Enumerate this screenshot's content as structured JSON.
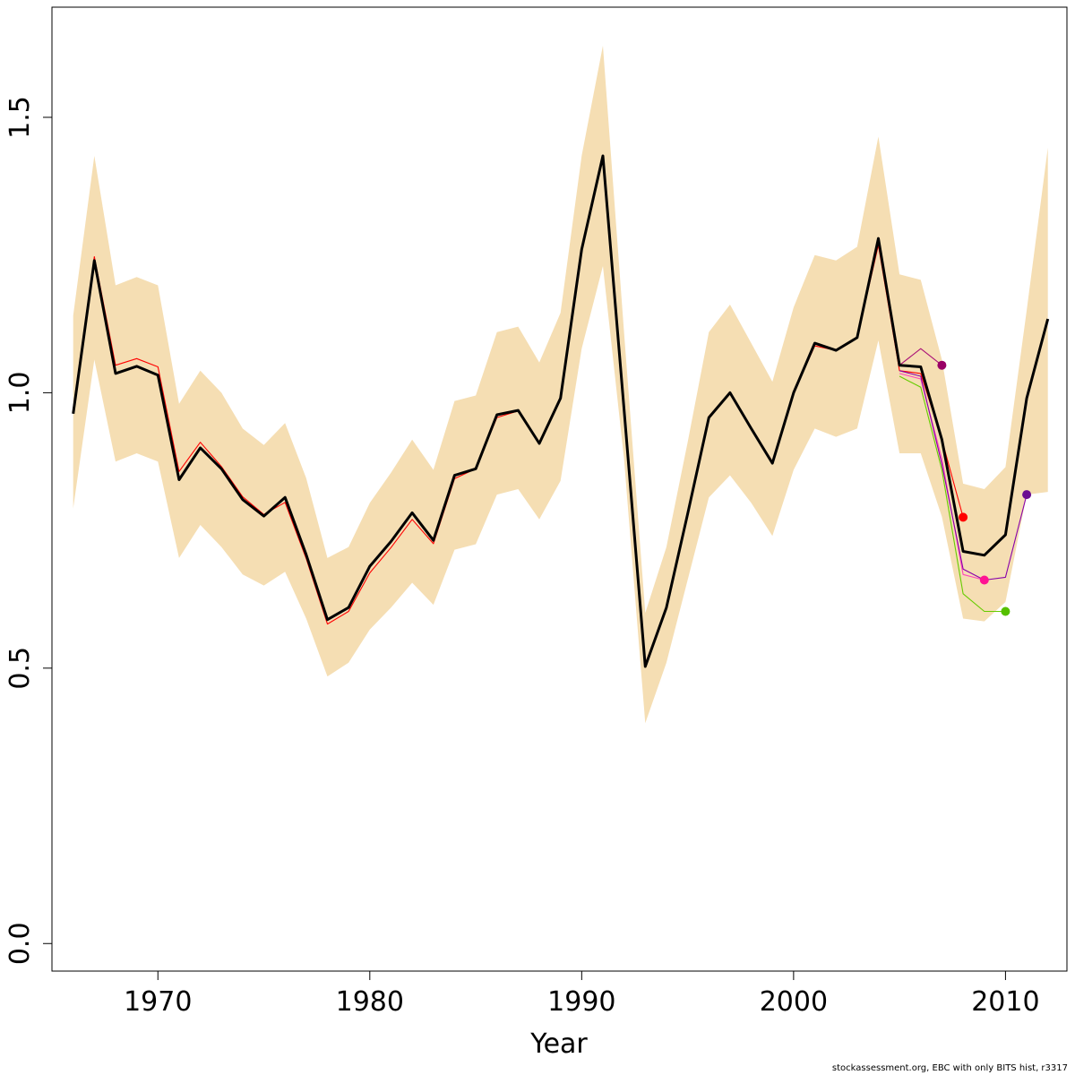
{
  "chart_data": {
    "type": "line",
    "xlabel": "Year",
    "ylabel": "",
    "xlim": [
      1965.0,
      2012.9
    ],
    "ylim": [
      -0.05,
      1.7
    ],
    "x_ticks": [
      1970,
      1980,
      1990,
      2000,
      2010
    ],
    "y_ticks": [
      0.0,
      0.5,
      1.0,
      1.5
    ],
    "x_tick_labels": [
      "1970",
      "1980",
      "1990",
      "2000",
      "2010"
    ],
    "y_tick_labels": [
      "0.0",
      "0.5",
      "1.0",
      "1.5"
    ],
    "band": {
      "color": "#f5deb3",
      "x": [
        1966,
        1967,
        1968,
        1969,
        1970,
        1971,
        1972,
        1973,
        1974,
        1975,
        1976,
        1977,
        1978,
        1979,
        1980,
        1981,
        1982,
        1983,
        1984,
        1985,
        1986,
        1987,
        1988,
        1989,
        1990,
        1991,
        1992,
        1993,
        1994,
        1995,
        1996,
        1997,
        1998,
        1999,
        2000,
        2001,
        2002,
        2003,
        2004,
        2005,
        2006,
        2007,
        2008,
        2009,
        2010,
        2011,
        2012
      ],
      "lower": [
        0.79,
        1.06,
        0.875,
        0.89,
        0.875,
        0.7,
        0.76,
        0.72,
        0.67,
        0.65,
        0.675,
        0.59,
        0.485,
        0.51,
        0.57,
        0.61,
        0.655,
        0.615,
        0.715,
        0.725,
        0.815,
        0.825,
        0.77,
        0.84,
        1.08,
        1.23,
        0.88,
        0.4,
        0.51,
        0.66,
        0.81,
        0.85,
        0.8,
        0.74,
        0.86,
        0.935,
        0.92,
        0.935,
        1.095,
        0.89,
        0.89,
        0.775,
        0.59,
        0.585,
        0.62,
        0.815,
        0.82
      ],
      "upper": [
        1.14,
        1.43,
        1.195,
        1.21,
        1.195,
        0.98,
        1.04,
        1.0,
        0.935,
        0.905,
        0.945,
        0.845,
        0.7,
        0.72,
        0.8,
        0.855,
        0.915,
        0.86,
        0.985,
        0.995,
        1.11,
        1.12,
        1.055,
        1.145,
        1.43,
        1.63,
        1.11,
        0.6,
        0.72,
        0.91,
        1.11,
        1.16,
        1.09,
        1.02,
        1.155,
        1.25,
        1.24,
        1.265,
        1.465,
        1.215,
        1.205,
        1.06,
        0.835,
        0.825,
        0.865,
        1.15,
        1.445
      ]
    },
    "series": [
      {
        "color": "#000000",
        "x": [
          1966,
          1967,
          1968,
          1969,
          1970,
          1971,
          1972,
          1973,
          1974,
          1975,
          1976,
          1977,
          1978,
          1979,
          1980,
          1981,
          1982,
          1983,
          1984,
          1985,
          1986,
          1987,
          1988,
          1989,
          1990,
          1991,
          1992,
          1993,
          1994,
          1995,
          1996,
          1997,
          1998,
          1999,
          2000,
          2001,
          2002,
          2003,
          2004,
          2005,
          2006,
          2007,
          2008,
          2009,
          2010,
          2011,
          2012
        ],
        "values": [
          0.962,
          1.24,
          1.035,
          1.048,
          1.032,
          0.842,
          0.9,
          0.862,
          0.806,
          0.776,
          0.81,
          0.706,
          0.588,
          0.61,
          0.685,
          0.73,
          0.782,
          0.732,
          0.85,
          0.862,
          0.96,
          0.968,
          0.908,
          0.99,
          1.26,
          1.43,
          0.97,
          0.503,
          0.61,
          0.78,
          0.955,
          1.0,
          0.935,
          0.872,
          1.0,
          1.09,
          1.077,
          1.1,
          1.28,
          1.05,
          1.047,
          0.915,
          0.712,
          0.705,
          0.742,
          0.99,
          1.134
        ]
      },
      {
        "color": "#ff0000",
        "x": [
          1966,
          1967,
          1968,
          1969,
          1970,
          1971,
          1972,
          1973,
          1974,
          1975,
          1976,
          1977,
          1978,
          1979,
          1980,
          1981,
          1982,
          1983,
          1984,
          1985,
          1986,
          1987,
          1988,
          1989,
          1990,
          1991,
          1992,
          1993,
          1994,
          1995,
          1996,
          1997,
          1998,
          1999,
          2000,
          2001,
          2002,
          2003,
          2004,
          2005,
          2006,
          2007,
          2008
        ],
        "values": [
          0.97,
          1.247,
          1.05,
          1.062,
          1.047,
          0.857,
          0.91,
          0.866,
          0.811,
          0.779,
          0.801,
          0.699,
          0.58,
          0.603,
          0.673,
          0.719,
          0.77,
          0.726,
          0.844,
          0.862,
          0.955,
          0.967,
          0.91,
          0.99,
          1.258,
          1.43,
          0.98,
          0.508,
          0.61,
          0.78,
          0.957,
          1.0,
          0.935,
          0.875,
          1.0,
          1.085,
          1.077,
          1.1,
          1.268,
          1.04,
          1.035,
          0.915,
          0.774
        ]
      },
      {
        "color": "#aa1177",
        "x": [
          2005,
          2006,
          2007
        ],
        "values": [
          1.05,
          1.08,
          1.05
        ]
      },
      {
        "color": "#ff44bb",
        "x": [
          2005,
          2006,
          2007,
          2008,
          2009
        ],
        "values": [
          1.035,
          1.025,
          0.88,
          0.67,
          0.66
        ]
      },
      {
        "color": "#66cc00",
        "x": [
          2005,
          2006,
          2007,
          2008,
          2009,
          2010
        ],
        "values": [
          1.03,
          1.01,
          0.86,
          0.635,
          0.603,
          0.603
        ]
      },
      {
        "color": "#8800aa",
        "x": [
          2005,
          2006,
          2007,
          2008,
          2009,
          2010,
          2011
        ],
        "values": [
          1.04,
          1.03,
          0.87,
          0.68,
          0.66,
          0.665,
          0.815
        ]
      }
    ],
    "endpoints": [
      {
        "x": 2007,
        "y": 1.05,
        "color": "#990066"
      },
      {
        "x": 2008,
        "y": 0.774,
        "color": "#ff0000"
      },
      {
        "x": 2009,
        "y": 0.66,
        "color": "#ff1493"
      },
      {
        "x": 2010,
        "y": 0.603,
        "color": "#55c000"
      },
      {
        "x": 2011,
        "y": 0.815,
        "color": "#6a0d91"
      }
    ],
    "grid": false,
    "legend": "none"
  },
  "footer": "stockassessment.org, EBC with only BITS hist, r3317"
}
